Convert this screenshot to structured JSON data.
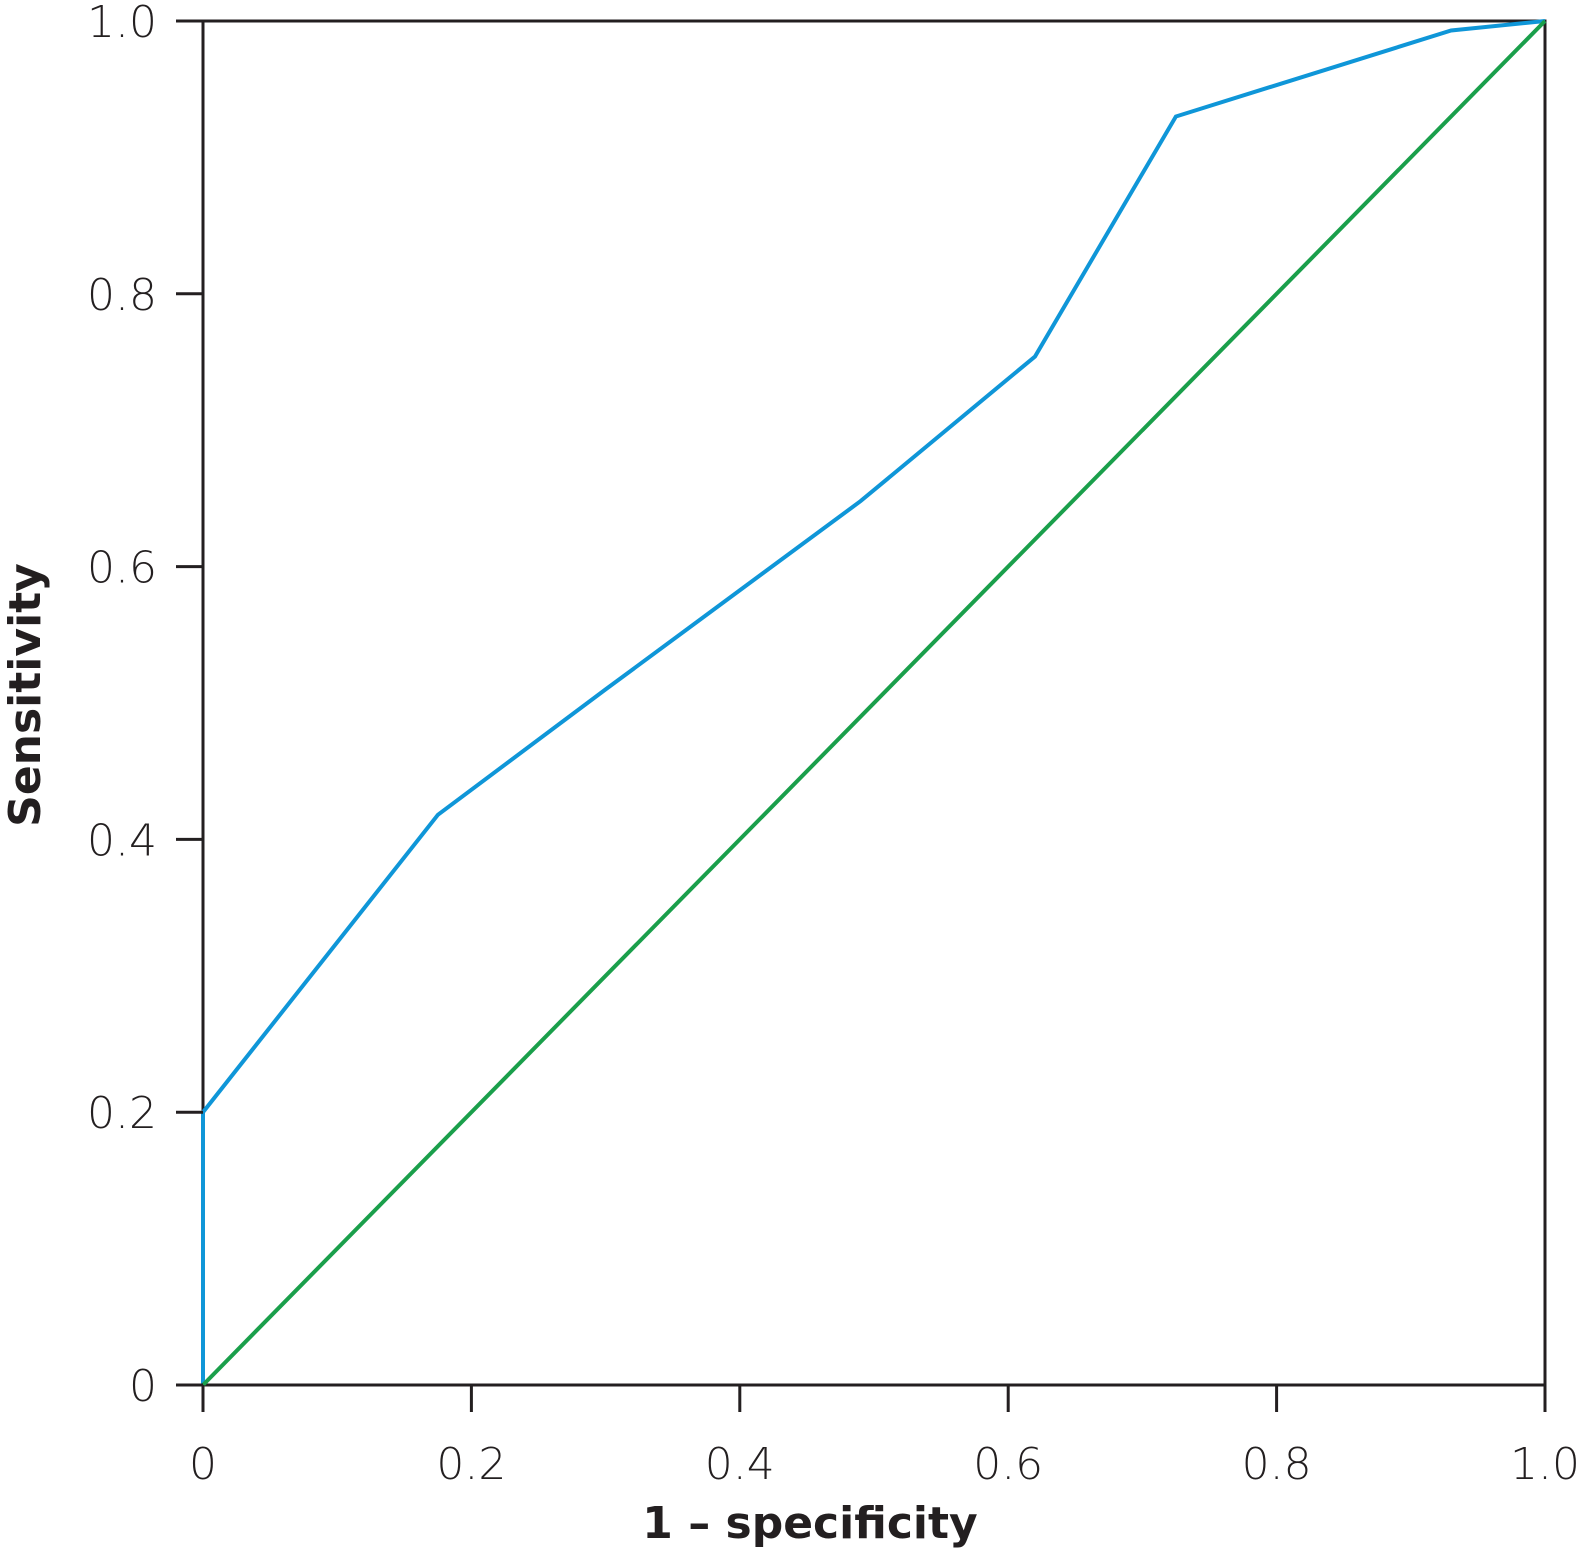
{
  "chart_data": {
    "type": "line",
    "title": "",
    "xlabel": "1 – specificity",
    "ylabel": "Sensitivity",
    "xlim": [
      0,
      1
    ],
    "ylim": [
      0,
      1
    ],
    "x_ticks": [
      0,
      0.2,
      0.4,
      0.6,
      0.8,
      1.0
    ],
    "x_tick_labels": [
      "0",
      "0.2",
      "0.4",
      "0.6",
      "0.8",
      "1.0"
    ],
    "y_ticks": [
      0,
      0.2,
      0.4,
      0.6,
      0.8,
      1.0
    ],
    "y_tick_labels": [
      "0",
      "0.2",
      "0.4",
      "0.6",
      "0.8",
      "1.0"
    ],
    "grid": false,
    "legend": "none",
    "series": [
      {
        "color": "#0f96d8",
        "x": [
          0,
          0,
          0.175,
          0.3,
          0.49,
          0.62,
          0.725,
          0.93,
          1.0
        ],
        "y": [
          0,
          0.2,
          0.418,
          0.51,
          0.648,
          0.754,
          0.93,
          0.993,
          1.0
        ]
      },
      {
        "color": "#1a9f4b",
        "x": [
          0,
          1
        ],
        "y": [
          0,
          1
        ]
      }
    ]
  }
}
